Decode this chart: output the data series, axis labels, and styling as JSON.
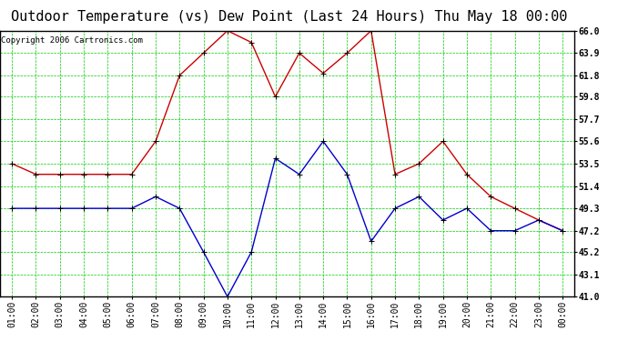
{
  "title": "Outdoor Temperature (vs) Dew Point (Last 24 Hours) Thu May 18 00:00",
  "copyright_text": "Copyright 2006 Cartronics.com",
  "x_labels": [
    "01:00",
    "02:00",
    "03:00",
    "04:00",
    "05:00",
    "06:00",
    "07:00",
    "08:00",
    "09:00",
    "10:00",
    "11:00",
    "12:00",
    "13:00",
    "14:00",
    "15:00",
    "16:00",
    "17:00",
    "18:00",
    "19:00",
    "20:00",
    "21:00",
    "22:00",
    "23:00",
    "00:00"
  ],
  "temp_values": [
    53.5,
    52.5,
    52.5,
    52.5,
    52.5,
    52.5,
    55.6,
    61.8,
    63.9,
    66.0,
    64.9,
    59.8,
    63.9,
    62.0,
    63.9,
    66.0,
    52.5,
    53.5,
    55.6,
    52.5,
    50.4,
    49.3,
    48.2,
    47.2
  ],
  "dew_values": [
    49.3,
    49.3,
    49.3,
    49.3,
    49.3,
    49.3,
    50.4,
    49.3,
    45.2,
    41.0,
    45.2,
    54.0,
    52.5,
    55.6,
    52.5,
    46.2,
    49.3,
    50.4,
    48.2,
    49.3,
    47.2,
    47.2,
    48.2,
    47.2
  ],
  "temp_color": "#cc0000",
  "dew_color": "#0000cc",
  "grid_color": "#00cc00",
  "bg_color": "#ffffff",
  "plot_bg_color": "#ffffff",
  "ylim": [
    41.0,
    66.0
  ],
  "yticks": [
    41.0,
    43.1,
    45.2,
    47.2,
    49.3,
    51.4,
    53.5,
    55.6,
    57.7,
    59.8,
    61.8,
    63.9,
    66.0
  ],
  "title_fontsize": 11,
  "copyright_fontsize": 6.5,
  "tick_fontsize": 7,
  "marker": "+"
}
